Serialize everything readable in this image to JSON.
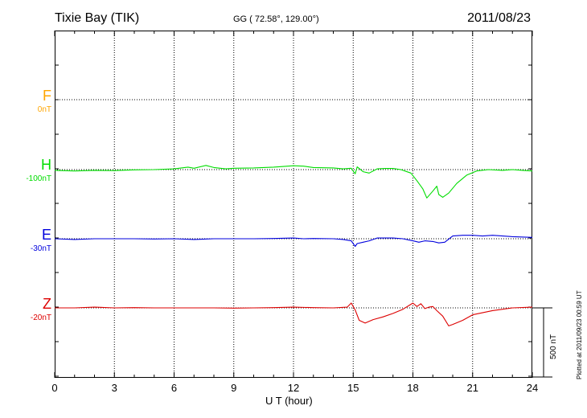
{
  "header": {
    "station": "Tixie Bay (TIK)",
    "coords": "GG ( 72.58°, 129.00°)",
    "date": "2011/08/23"
  },
  "plotted_note": "Plotted at 2011/09/23 00:59 UT",
  "scale_label": "500 nT",
  "chart_data": {
    "type": "line",
    "xlabel": "U T (hour)",
    "xlim": [
      0,
      24
    ],
    "xticks": [
      "0",
      "3",
      "6",
      "9",
      "12",
      "15",
      "18",
      "21",
      "24"
    ],
    "grid": true,
    "scale_bar_nT": 500,
    "components": [
      {
        "name": "F",
        "offset": "0nT",
        "color": "#ffa500",
        "x": [],
        "y": []
      },
      {
        "name": "H",
        "offset": "-100nT",
        "color": "#00dd00",
        "x": [
          0,
          1,
          2,
          3,
          4,
          5,
          6,
          6.7,
          7,
          7.6,
          8,
          8.6,
          9,
          10,
          11,
          12,
          12.5,
          13,
          14,
          14.5,
          14.9,
          15.1,
          15.2,
          15.5,
          15.8,
          16.2,
          16.6,
          17,
          17.4,
          17.9,
          18.2,
          18.5,
          18.7,
          19,
          19.2,
          19.3,
          19.5,
          19.8,
          20.2,
          20.7,
          21.2,
          21.8,
          22.5,
          23,
          23.5,
          24
        ],
        "y": [
          -5,
          -10,
          -5,
          -7,
          -2,
          0,
          5,
          18,
          10,
          30,
          15,
          5,
          10,
          12,
          18,
          28,
          25,
          15,
          12,
          5,
          10,
          -30,
          20,
          -15,
          -25,
          5,
          8,
          8,
          0,
          -25,
          -80,
          -140,
          -205,
          -155,
          -120,
          -180,
          -200,
          -170,
          -100,
          -40,
          -10,
          0,
          -5,
          0,
          -5,
          -10
        ]
      },
      {
        "name": "E",
        "offset": "-30nT",
        "color": "#0000dd",
        "x": [
          0,
          1,
          2,
          3,
          4,
          5,
          6,
          7,
          8,
          9,
          10,
          11,
          12,
          12.5,
          13,
          14,
          14.5,
          14.9,
          15.1,
          15.2,
          15.5,
          15.8,
          16.2,
          17,
          17.5,
          18,
          18.3,
          18.6,
          19,
          19.3,
          19.6,
          20,
          20.5,
          21,
          21.5,
          22,
          23,
          24
        ],
        "y": [
          0,
          -5,
          0,
          0,
          0,
          -2,
          0,
          -5,
          0,
          0,
          0,
          2,
          5,
          0,
          2,
          0,
          -5,
          -15,
          -55,
          -35,
          -25,
          -15,
          5,
          5,
          0,
          -15,
          -25,
          -15,
          -20,
          -30,
          -25,
          20,
          25,
          25,
          20,
          25,
          15,
          10
        ]
      },
      {
        "name": "Z",
        "offset": "-20nT",
        "color": "#dd0000",
        "x": [
          0,
          1,
          2,
          3,
          4,
          5,
          6,
          7,
          8,
          9,
          10,
          11,
          12,
          13,
          14,
          14.7,
          14.9,
          15.1,
          15.3,
          15.6,
          16,
          16.5,
          17,
          17.5,
          18,
          18.2,
          18.4,
          18.6,
          18.8,
          19,
          19.2,
          19.5,
          19.8,
          20,
          20.5,
          21,
          22,
          23,
          24
        ],
        "y": [
          0,
          0,
          5,
          0,
          2,
          0,
          0,
          0,
          0,
          -2,
          0,
          2,
          5,
          2,
          0,
          5,
          35,
          -15,
          -90,
          -110,
          -85,
          -65,
          -40,
          -10,
          35,
          10,
          30,
          -5,
          5,
          10,
          -20,
          -60,
          -130,
          -120,
          -90,
          -50,
          -20,
          0,
          5
        ]
      }
    ]
  }
}
